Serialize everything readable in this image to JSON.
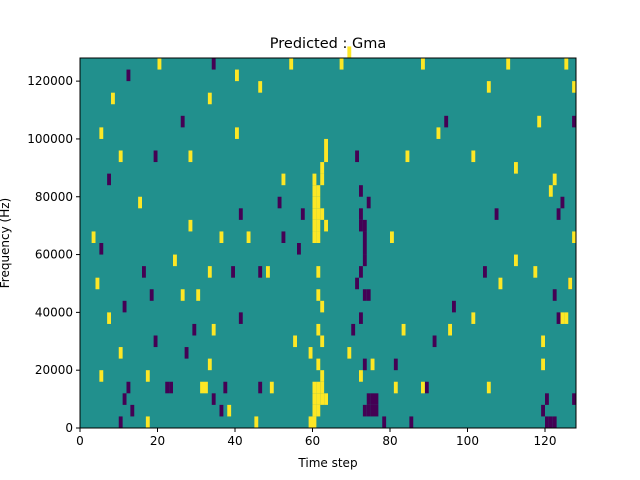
{
  "chart_data": {
    "type": "heatmap",
    "title": "Predicted : Gma",
    "xlabel": "Time step",
    "ylabel": "Frequency (Hz)",
    "xlim": [
      0,
      128
    ],
    "ylim": [
      0,
      128000
    ],
    "x_ticks": [
      0,
      20,
      40,
      60,
      80,
      100,
      120
    ],
    "y_ticks": [
      0,
      20000,
      40000,
      60000,
      80000,
      100000,
      120000
    ],
    "y_tick_labels": [
      "0",
      "20000",
      "40000",
      "60000",
      "80000",
      "100000",
      "120000"
    ],
    "grid": false,
    "legend": "none",
    "value_levels": {
      "low": -1,
      "mid": 0,
      "high": 1
    },
    "colors": {
      "low": "#440154",
      "mid": "#21908d",
      "high": "#fde725"
    },
    "cell_height_hz": 4000,
    "cells": [
      {
        "t": 60,
        "f": 84000,
        "v": 1
      },
      {
        "t": 60,
        "f": 80000,
        "v": 1
      },
      {
        "t": 60,
        "f": 76000,
        "v": 1
      },
      {
        "t": 60,
        "f": 72000,
        "v": 1
      },
      {
        "t": 60,
        "f": 68000,
        "v": 1
      },
      {
        "t": 60,
        "f": 64000,
        "v": 1
      },
      {
        "t": 61,
        "f": 80000,
        "v": 1
      },
      {
        "t": 61,
        "f": 76000,
        "v": 1
      },
      {
        "t": 61,
        "f": 72000,
        "v": 1
      },
      {
        "t": 61,
        "f": 68000,
        "v": 1
      },
      {
        "t": 61,
        "f": 64000,
        "v": 1
      },
      {
        "t": 62,
        "f": 84000,
        "v": 1
      },
      {
        "t": 62,
        "f": 72000,
        "v": 1
      },
      {
        "t": 62,
        "f": 88000,
        "v": 1
      },
      {
        "t": 63,
        "f": 92000,
        "v": 1
      },
      {
        "t": 63,
        "f": 96000,
        "v": 1
      },
      {
        "t": 61,
        "f": 52000,
        "v": 1
      },
      {
        "t": 61,
        "f": 44000,
        "v": 1
      },
      {
        "t": 62,
        "f": 40000,
        "v": 1
      },
      {
        "t": 61,
        "f": 32000,
        "v": 1
      },
      {
        "t": 62,
        "f": 28000,
        "v": 1
      },
      {
        "t": 61,
        "f": 20000,
        "v": 1
      },
      {
        "t": 60,
        "f": 12000,
        "v": 1
      },
      {
        "t": 61,
        "f": 12000,
        "v": 1
      },
      {
        "t": 62,
        "f": 12000,
        "v": 1
      },
      {
        "t": 60,
        "f": 8000,
        "v": 1
      },
      {
        "t": 61,
        "f": 8000,
        "v": 1
      },
      {
        "t": 62,
        "f": 8000,
        "v": 1
      },
      {
        "t": 63,
        "f": 8000,
        "v": 1
      },
      {
        "t": 60,
        "f": 4000,
        "v": 1
      },
      {
        "t": 61,
        "f": 4000,
        "v": 1
      },
      {
        "t": 59,
        "f": 0,
        "v": 1
      },
      {
        "t": 60,
        "f": 0,
        "v": 1
      },
      {
        "t": 62,
        "f": 16000,
        "v": 1
      },
      {
        "t": 59,
        "f": 24000,
        "v": 1
      },
      {
        "t": 73,
        "f": 4000,
        "v": -1
      },
      {
        "t": 74,
        "f": 4000,
        "v": -1
      },
      {
        "t": 75,
        "f": 4000,
        "v": -1
      },
      {
        "t": 76,
        "f": 4000,
        "v": -1
      },
      {
        "t": 74,
        "f": 8000,
        "v": -1
      },
      {
        "t": 75,
        "f": 8000,
        "v": -1
      },
      {
        "t": 76,
        "f": 8000,
        "v": -1
      },
      {
        "t": 73,
        "f": 20000,
        "v": -1
      },
      {
        "t": 72,
        "f": 72000,
        "v": -1
      },
      {
        "t": 72,
        "f": 68000,
        "v": -1
      },
      {
        "t": 73,
        "f": 68000,
        "v": -1
      },
      {
        "t": 73,
        "f": 64000,
        "v": -1
      },
      {
        "t": 73,
        "f": 60000,
        "v": -1
      },
      {
        "t": 73,
        "f": 56000,
        "v": -1
      },
      {
        "t": 72,
        "f": 52000,
        "v": -1
      },
      {
        "t": 73,
        "f": 44000,
        "v": -1
      },
      {
        "t": 74,
        "f": 44000,
        "v": -1
      },
      {
        "t": 72,
        "f": 80000,
        "v": -1
      },
      {
        "t": 74,
        "f": 76000,
        "v": -1
      },
      {
        "t": 71,
        "f": 92000,
        "v": -1
      },
      {
        "t": 57,
        "f": 72000,
        "v": -1
      },
      {
        "t": 52,
        "f": 64000,
        "v": -1
      },
      {
        "t": 56,
        "f": 60000,
        "v": -1
      },
      {
        "t": 71,
        "f": 48000,
        "v": -1
      },
      {
        "t": 70,
        "f": 32000,
        "v": -1
      },
      {
        "t": 72,
        "f": 36000,
        "v": -1
      },
      {
        "t": 23,
        "f": 12000,
        "v": -1
      },
      {
        "t": 22,
        "f": 12000,
        "v": -1
      },
      {
        "t": 11,
        "f": 8000,
        "v": -1
      },
      {
        "t": 12,
        "f": 12000,
        "v": -1
      },
      {
        "t": 13,
        "f": 4000,
        "v": -1
      },
      {
        "t": 10,
        "f": 0,
        "v": -1
      },
      {
        "t": 34,
        "f": 8000,
        "v": -1
      },
      {
        "t": 36,
        "f": 4000,
        "v": -1
      },
      {
        "t": 37,
        "f": 12000,
        "v": -1
      },
      {
        "t": 120,
        "f": 0,
        "v": -1
      },
      {
        "t": 121,
        "f": 0,
        "v": -1
      },
      {
        "t": 122,
        "f": 0,
        "v": -1
      },
      {
        "t": 119,
        "f": 4000,
        "v": -1
      },
      {
        "t": 120,
        "f": 8000,
        "v": -1
      },
      {
        "t": 127,
        "f": 8000,
        "v": -1
      },
      {
        "t": 78,
        "f": 0,
        "v": -1
      },
      {
        "t": 85,
        "f": 0,
        "v": -1
      },
      {
        "t": 89,
        "f": 12000,
        "v": -1
      },
      {
        "t": 123,
        "f": 36000,
        "v": -1
      },
      {
        "t": 122,
        "f": 44000,
        "v": -1
      },
      {
        "t": 126,
        "f": 48000,
        "v": -1
      },
      {
        "t": 123,
        "f": 72000,
        "v": -1
      },
      {
        "t": 124,
        "f": 76000,
        "v": -1
      },
      {
        "t": 127,
        "f": 104000,
        "v": -1
      },
      {
        "t": 94,
        "f": 104000,
        "v": -1
      },
      {
        "t": 107,
        "f": 72000,
        "v": -1
      },
      {
        "t": 104,
        "f": 52000,
        "v": -1
      },
      {
        "t": 96,
        "f": 40000,
        "v": -1
      },
      {
        "t": 91,
        "f": 28000,
        "v": -1
      },
      {
        "t": 81,
        "f": 20000,
        "v": -1
      },
      {
        "t": 39,
        "f": 52000,
        "v": -1
      },
      {
        "t": 41,
        "f": 36000,
        "v": -1
      },
      {
        "t": 46,
        "f": 52000,
        "v": -1
      },
      {
        "t": 41,
        "f": 72000,
        "v": -1
      },
      {
        "t": 51,
        "f": 76000,
        "v": -1
      },
      {
        "t": 26,
        "f": 104000,
        "v": -1
      },
      {
        "t": 19,
        "f": 92000,
        "v": -1
      },
      {
        "t": 12,
        "f": 120000,
        "v": -1
      },
      {
        "t": 34,
        "f": 124000,
        "v": -1
      },
      {
        "t": 7,
        "f": 84000,
        "v": -1
      },
      {
        "t": 5,
        "f": 60000,
        "v": -1
      },
      {
        "t": 11,
        "f": 40000,
        "v": -1
      },
      {
        "t": 16,
        "f": 52000,
        "v": -1
      },
      {
        "t": 18,
        "f": 44000,
        "v": -1
      },
      {
        "t": 19,
        "f": 28000,
        "v": -1
      },
      {
        "t": 27,
        "f": 24000,
        "v": -1
      },
      {
        "t": 29,
        "f": 32000,
        "v": -1
      },
      {
        "t": 46,
        "f": 12000,
        "v": -1
      },
      {
        "t": 5,
        "f": 16000,
        "v": 1
      },
      {
        "t": 10,
        "f": 24000,
        "v": 1
      },
      {
        "t": 17,
        "f": 16000,
        "v": 1
      },
      {
        "t": 17,
        "f": 0,
        "v": 1
      },
      {
        "t": 31,
        "f": 12000,
        "v": 1
      },
      {
        "t": 32,
        "f": 12000,
        "v": 1
      },
      {
        "t": 33,
        "f": 20000,
        "v": 1
      },
      {
        "t": 38,
        "f": 4000,
        "v": 1
      },
      {
        "t": 45,
        "f": 0,
        "v": 1
      },
      {
        "t": 49,
        "f": 12000,
        "v": 1
      },
      {
        "t": 55,
        "f": 28000,
        "v": 1
      },
      {
        "t": 48,
        "f": 52000,
        "v": 1
      },
      {
        "t": 43,
        "f": 64000,
        "v": 1
      },
      {
        "t": 36,
        "f": 64000,
        "v": 1
      },
      {
        "t": 33,
        "f": 52000,
        "v": 1
      },
      {
        "t": 28,
        "f": 68000,
        "v": 1
      },
      {
        "t": 24,
        "f": 56000,
        "v": 1
      },
      {
        "t": 26,
        "f": 44000,
        "v": 1
      },
      {
        "t": 30,
        "f": 44000,
        "v": 1
      },
      {
        "t": 80,
        "f": 64000,
        "v": 1
      },
      {
        "t": 83,
        "f": 32000,
        "v": 1
      },
      {
        "t": 81,
        "f": 12000,
        "v": 1
      },
      {
        "t": 88,
        "f": 12000,
        "v": 1
      },
      {
        "t": 101,
        "f": 36000,
        "v": 1
      },
      {
        "t": 105,
        "f": 12000,
        "v": 1
      },
      {
        "t": 119,
        "f": 28000,
        "v": 1
      },
      {
        "t": 119,
        "f": 20000,
        "v": 1
      },
      {
        "t": 124,
        "f": 36000,
        "v": 1
      },
      {
        "t": 125,
        "f": 36000,
        "v": 1
      },
      {
        "t": 126,
        "f": 48000,
        "v": 1
      },
      {
        "t": 127,
        "f": 64000,
        "v": 1
      },
      {
        "t": 121,
        "f": 80000,
        "v": 1
      },
      {
        "t": 122,
        "f": 84000,
        "v": 1
      },
      {
        "t": 127,
        "f": 116000,
        "v": 1
      },
      {
        "t": 125,
        "f": 124000,
        "v": 1
      },
      {
        "t": 110,
        "f": 124000,
        "v": 1
      },
      {
        "t": 105,
        "f": 116000,
        "v": 1
      },
      {
        "t": 92,
        "f": 100000,
        "v": 1
      },
      {
        "t": 84,
        "f": 92000,
        "v": 1
      },
      {
        "t": 63,
        "f": 68000,
        "v": 1
      },
      {
        "t": 88,
        "f": 124000,
        "v": 1
      },
      {
        "t": 69,
        "f": 128000,
        "v": 1
      },
      {
        "t": 67,
        "f": 124000,
        "v": 1
      },
      {
        "t": 54,
        "f": 124000,
        "v": 1
      },
      {
        "t": 40,
        "f": 120000,
        "v": 1
      },
      {
        "t": 46,
        "f": 116000,
        "v": 1
      },
      {
        "t": 33,
        "f": 112000,
        "v": 1
      },
      {
        "t": 20,
        "f": 124000,
        "v": 1
      },
      {
        "t": 8,
        "f": 112000,
        "v": 1
      },
      {
        "t": 5,
        "f": 100000,
        "v": 1
      },
      {
        "t": 10,
        "f": 92000,
        "v": 1
      },
      {
        "t": 15,
        "f": 76000,
        "v": 1
      },
      {
        "t": 3,
        "f": 64000,
        "v": 1
      },
      {
        "t": 4,
        "f": 48000,
        "v": 1
      },
      {
        "t": 7,
        "f": 36000,
        "v": 1
      },
      {
        "t": 34,
        "f": 32000,
        "v": 1
      },
      {
        "t": 40,
        "f": 100000,
        "v": 1
      },
      {
        "t": 28,
        "f": 92000,
        "v": 1
      },
      {
        "t": 52,
        "f": 84000,
        "v": 1
      },
      {
        "t": 101,
        "f": 92000,
        "v": 1
      },
      {
        "t": 112,
        "f": 88000,
        "v": 1
      },
      {
        "t": 118,
        "f": 104000,
        "v": 1
      },
      {
        "t": 112,
        "f": 56000,
        "v": 1
      },
      {
        "t": 117,
        "f": 52000,
        "v": 1
      },
      {
        "t": 108,
        "f": 48000,
        "v": 1
      },
      {
        "t": 95,
        "f": 32000,
        "v": 1
      },
      {
        "t": 75,
        "f": 20000,
        "v": 1
      },
      {
        "t": 72,
        "f": 16000,
        "v": 1
      },
      {
        "t": 69,
        "f": 24000,
        "v": 1
      }
    ]
  }
}
